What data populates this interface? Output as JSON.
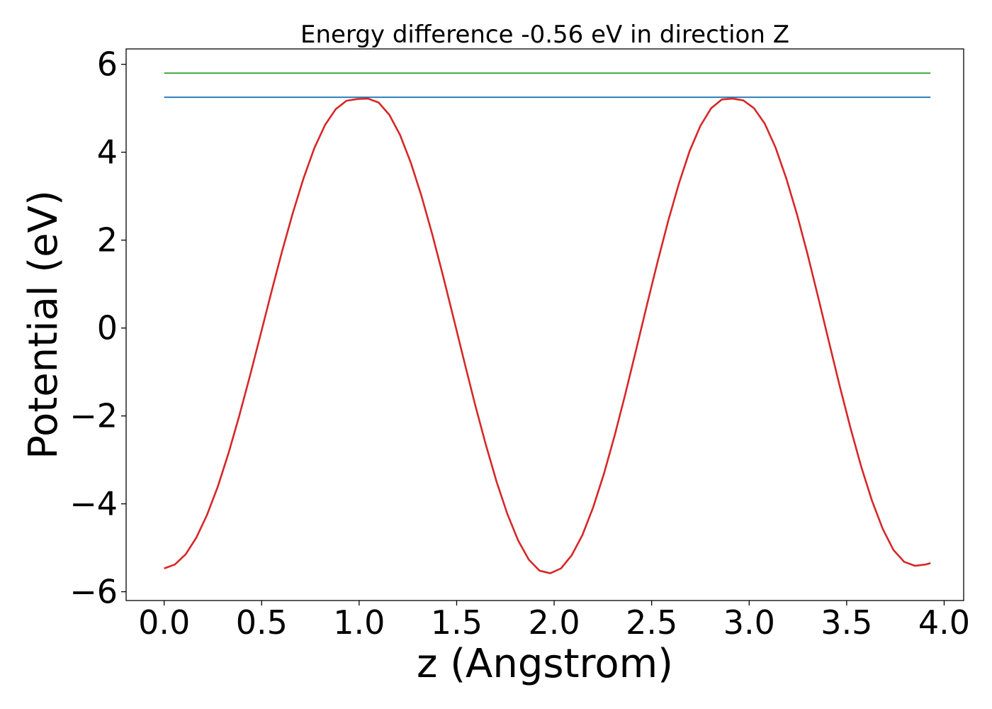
{
  "chart_data": {
    "type": "line",
    "title": "Energy difference -0.56 eV in direction Z",
    "xlabel": "z (Angstrom)",
    "ylabel": "Potential (eV)",
    "xlim": [
      -0.195,
      4.1
    ],
    "ylim": [
      -6.2,
      6.35
    ],
    "xticks": [
      0.0,
      0.5,
      1.0,
      1.5,
      2.0,
      2.5,
      3.0,
      3.5,
      4.0
    ],
    "xtick_labels": [
      "0.0",
      "0.5",
      "1.0",
      "1.5",
      "2.0",
      "2.5",
      "3.0",
      "3.5",
      "4.0"
    ],
    "yticks": [
      -6,
      -4,
      -2,
      0,
      2,
      4,
      6
    ],
    "ytick_labels": [
      "−6",
      "−4",
      "−2",
      "0",
      "2",
      "4",
      "6"
    ],
    "grid": false,
    "series": [
      {
        "color": "#d62728",
        "x": [
          0.0,
          0.055,
          0.11,
          0.165,
          0.22,
          0.275,
          0.33,
          0.385,
          0.44,
          0.495,
          0.55,
          0.605,
          0.66,
          0.715,
          0.77,
          0.825,
          0.88,
          0.935,
          0.99,
          1.045,
          1.1,
          1.155,
          1.21,
          1.265,
          1.32,
          1.375,
          1.43,
          1.485,
          1.54,
          1.595,
          1.65,
          1.705,
          1.76,
          1.815,
          1.87,
          1.925,
          1.98,
          2.035,
          2.09,
          2.145,
          2.2,
          2.255,
          2.31,
          2.365,
          2.42,
          2.475,
          2.53,
          2.585,
          2.64,
          2.695,
          2.75,
          2.805,
          2.86,
          2.915,
          2.97,
          3.025,
          3.08,
          3.135,
          3.19,
          3.245,
          3.3,
          3.355,
          3.41,
          3.465,
          3.52,
          3.575,
          3.63,
          3.685,
          3.74,
          3.795,
          3.85,
          3.905,
          3.93
        ],
        "y": [
          -5.47,
          -5.38,
          -5.15,
          -4.77,
          -4.25,
          -3.61,
          -2.85,
          -2.0,
          -1.09,
          -0.14,
          0.82,
          1.75,
          2.62,
          3.41,
          4.09,
          4.62,
          4.98,
          5.17,
          5.21,
          5.22,
          5.13,
          4.85,
          4.39,
          3.76,
          3.0,
          2.13,
          1.19,
          0.21,
          -0.78,
          -1.75,
          -2.66,
          -3.5,
          -4.23,
          -4.83,
          -5.27,
          -5.52,
          -5.58,
          -5.47,
          -5.17,
          -4.71,
          -4.08,
          -3.32,
          -2.45,
          -1.5,
          -0.5,
          0.51,
          1.5,
          2.44,
          3.29,
          4.03,
          4.6,
          5.0,
          5.2,
          5.22,
          5.18,
          5.0,
          4.65,
          4.11,
          3.41,
          2.59,
          1.67,
          0.68,
          -0.33,
          -1.33,
          -2.28,
          -3.16,
          -3.93,
          -4.57,
          -5.05,
          -5.32,
          -5.41,
          -5.38,
          -5.35
        ]
      },
      {
        "color": "#1f77b4",
        "x": [
          0.0,
          3.93
        ],
        "y": [
          5.25,
          5.25
        ]
      },
      {
        "color": "#2ca02c",
        "x": [
          0.0,
          3.93
        ],
        "y": [
          5.8,
          5.8
        ]
      }
    ]
  }
}
